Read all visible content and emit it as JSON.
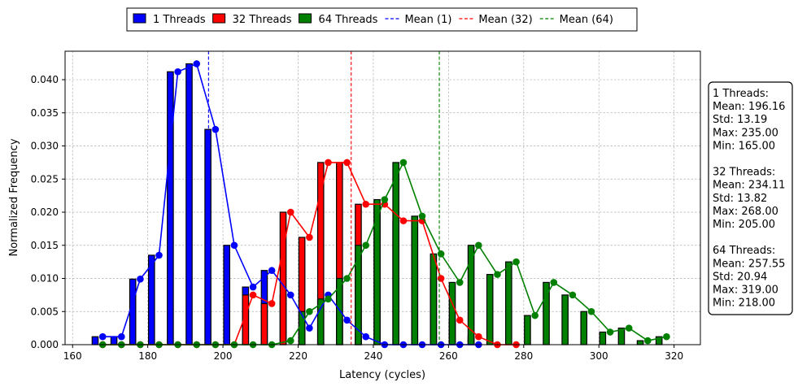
{
  "chart_data": {
    "type": "bar",
    "title": "",
    "xlabel": "Latency (cycles)",
    "ylabel": "Normalized Frequency",
    "xlim": [
      158,
      327
    ],
    "ylim": [
      0,
      0.0443
    ],
    "xticks": [
      160,
      180,
      200,
      220,
      240,
      260,
      280,
      300,
      320
    ],
    "yticks": [
      0.0,
      0.005,
      0.01,
      0.015,
      0.02,
      0.025,
      0.03,
      0.035,
      0.04
    ],
    "xtick_labels": [
      "160",
      "180",
      "200",
      "220",
      "240",
      "260",
      "280",
      "300",
      "320"
    ],
    "ytick_labels": [
      "0.000",
      "0.005",
      "0.010",
      "0.015",
      "0.020",
      "0.025",
      "0.030",
      "0.035",
      "0.040"
    ],
    "grid": true,
    "legend_position": "top-center",
    "series": [
      {
        "name": "1 Threads",
        "color": "#0000ff",
        "bar_x": [
          166,
          171,
          176,
          181,
          186,
          191,
          196,
          201,
          206,
          211,
          216,
          221,
          226,
          231,
          236,
          241,
          246,
          251,
          256,
          261,
          266
        ],
        "bar_values": [
          0.0012,
          0.0012,
          0.0099,
          0.0135,
          0.0412,
          0.0424,
          0.0325,
          0.015,
          0.0087,
          0.0112,
          0.0075,
          0.0025,
          0.0075,
          0.0037,
          0.0012,
          0.0,
          0.0,
          0.0,
          0.0,
          0.0,
          0.0
        ],
        "line_x": [
          168,
          173,
          178,
          183,
          188,
          193,
          198,
          203,
          208,
          213,
          218,
          223,
          228,
          233,
          238,
          243,
          248,
          253,
          258,
          263,
          268
        ],
        "line_values": [
          0.0012,
          0.0012,
          0.0099,
          0.0135,
          0.0412,
          0.0424,
          0.0325,
          0.015,
          0.0087,
          0.0112,
          0.0075,
          0.0025,
          0.0075,
          0.0037,
          0.0012,
          0.0,
          0.0,
          0.0,
          0.0,
          0.0,
          0.0
        ]
      },
      {
        "name": "32 Threads",
        "color": "#ff0000",
        "bar_x": [
          206,
          211,
          216,
          221,
          226,
          231,
          236,
          241,
          246,
          251,
          256,
          261,
          266
        ],
        "bar_values": [
          0.0075,
          0.0062,
          0.02,
          0.0162,
          0.0275,
          0.0275,
          0.0212,
          0.0212,
          0.0187,
          0.0187,
          0.01,
          0.0037,
          0.0012
        ],
        "line_x": [
          168,
          173,
          178,
          183,
          188,
          193,
          198,
          203,
          208,
          213,
          218,
          223,
          228,
          233,
          238,
          243,
          248,
          253,
          258,
          263,
          268,
          273,
          278
        ],
        "line_values": [
          0,
          0,
          0,
          0,
          0,
          0,
          0,
          0,
          0.0075,
          0.0062,
          0.02,
          0.0162,
          0.0275,
          0.0275,
          0.0212,
          0.0212,
          0.0187,
          0.0187,
          0.01,
          0.0037,
          0.0012,
          0,
          0
        ]
      },
      {
        "name": "64 Threads",
        "color": "#008000",
        "bar_x": [
          221,
          226,
          231,
          236,
          241,
          246,
          251,
          256,
          261,
          266,
          271,
          276,
          281,
          286,
          291,
          296,
          301,
          306,
          311,
          316
        ],
        "bar_values": [
          0.005,
          0.0069,
          0.01,
          0.015,
          0.0219,
          0.0275,
          0.0194,
          0.0137,
          0.0094,
          0.015,
          0.0106,
          0.0125,
          0.0044,
          0.0094,
          0.0075,
          0.005,
          0.0019,
          0.0025,
          0.0006,
          0.0012
        ],
        "line_x": [
          168,
          173,
          178,
          183,
          188,
          193,
          198,
          203,
          208,
          213,
          218,
          223,
          228,
          233,
          238,
          243,
          248,
          253,
          258,
          263,
          268,
          273,
          278,
          283,
          288,
          293,
          298,
          303,
          308,
          313,
          318
        ],
        "line_values": [
          0,
          0,
          0,
          0,
          0,
          0,
          0,
          0,
          0,
          0,
          0.0006,
          0.005,
          0.0069,
          0.01,
          0.015,
          0.0219,
          0.0275,
          0.0194,
          0.0137,
          0.0094,
          0.015,
          0.0106,
          0.0125,
          0.0044,
          0.0094,
          0.0075,
          0.005,
          0.0019,
          0.0025,
          0.0006,
          0.0012
        ]
      }
    ],
    "means": [
      {
        "name": "Mean (1)",
        "x": 196.16,
        "color": "#0000ff"
      },
      {
        "name": "Mean (32)",
        "x": 234.11,
        "color": "#ff0000"
      },
      {
        "name": "Mean (64)",
        "x": 257.55,
        "color": "#008000"
      }
    ],
    "stats_box": [
      "1 Threads:",
      "Mean: 196.16",
      "Std: 13.19",
      "Max: 235.00",
      "Min: 165.00",
      "",
      "32 Threads:",
      "Mean: 234.11",
      "Std: 13.82",
      "Max: 268.00",
      "Min: 205.00",
      "",
      "64 Threads:",
      "Mean: 257.55",
      "Std: 20.94",
      "Max: 319.00",
      "Min: 218.00"
    ]
  }
}
